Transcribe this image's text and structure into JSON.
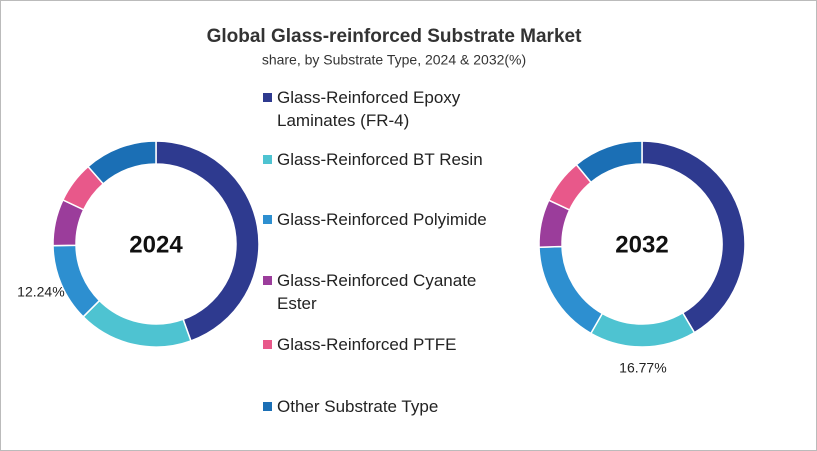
{
  "chart_data": {
    "type": "pie",
    "title": "Global Glass-reinforced Substrate Market",
    "subtitle": "share, by Substrate Type, 2024 & 2032(%)",
    "categories": [
      "Glass-Reinforced Epoxy Laminates (FR-4)",
      "Glass-Reinforced BT Resin",
      "Glass-Reinforced Polyimide",
      "Glass-Reinforced Cyanate Ester",
      "Glass-Reinforced PTFE",
      "Other Substrate Type"
    ],
    "colors": [
      "#2e3a8f",
      "#4ec3d1",
      "#2d8fd0",
      "#9b3d9b",
      "#e8588a",
      "#1b6fb5"
    ],
    "series": [
      {
        "name": "2024",
        "values": [
          44.5,
          18.0,
          12.24,
          7.3,
          6.5,
          11.46
        ],
        "value_labels": [
          null,
          null,
          "12.24%",
          null,
          null,
          null
        ]
      },
      {
        "name": "2032",
        "values": [
          41.5,
          16.77,
          16.23,
          7.5,
          7.0,
          11.0
        ],
        "value_labels": [
          null,
          "16.77%",
          null,
          null,
          null,
          null
        ]
      }
    ]
  }
}
